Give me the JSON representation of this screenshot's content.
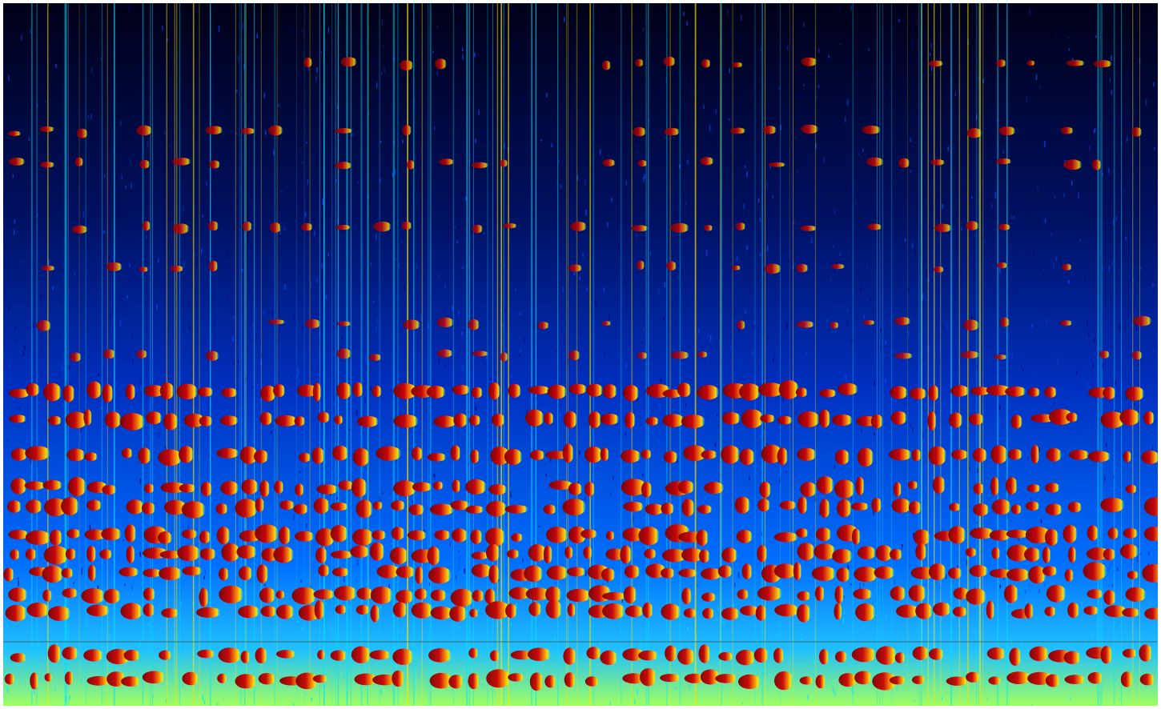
{
  "image": {
    "kind": "spectrogram",
    "colormap": "jet",
    "colors": {
      "background": "#ffffff",
      "low": "#00007a",
      "mid_low": "#0050ff",
      "mid": "#00e5ff",
      "mid_high": "#ffe600",
      "high": "#ff3a00",
      "peak": "#7a0000",
      "reference_line": "#3a6a6a"
    },
    "has_reference_line": true,
    "axes_visible": false,
    "labels_visible": false
  }
}
